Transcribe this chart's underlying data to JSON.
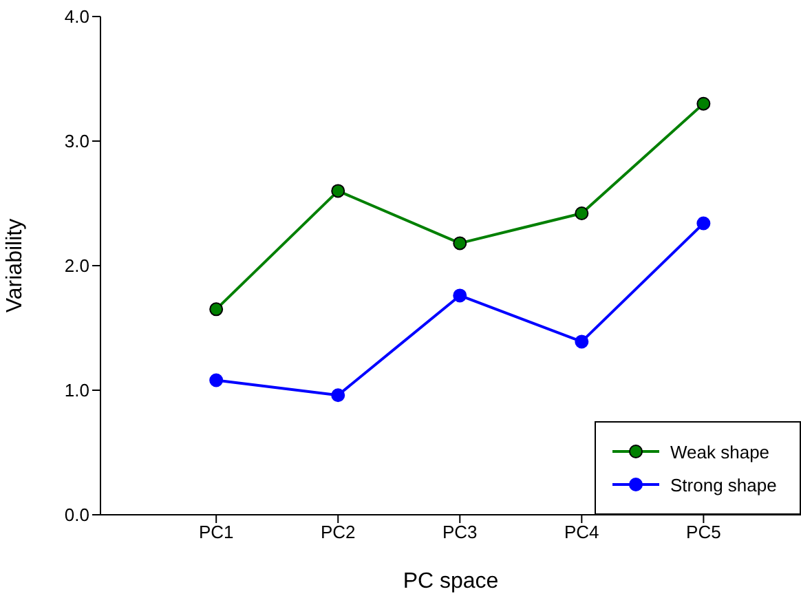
{
  "chart_data": {
    "type": "line",
    "xlabel": "PC space",
    "ylabel": "Variability",
    "categories": [
      "PC1",
      "PC2",
      "PC3",
      "PC4",
      "PC5"
    ],
    "series": [
      {
        "name": "Weak shape",
        "color": "#008000",
        "values": [
          1.65,
          2.6,
          2.18,
          2.42,
          3.3
        ]
      },
      {
        "name": "Strong shape",
        "color": "#0000ff",
        "values": [
          1.08,
          0.96,
          1.76,
          1.39,
          2.34
        ]
      }
    ],
    "ylim": [
      0,
      4
    ],
    "yticks": [
      {
        "value": 0,
        "label": "0.0"
      },
      {
        "value": 1,
        "label": "1.0"
      },
      {
        "value": 2,
        "label": "2.0"
      },
      {
        "value": 3,
        "label": "3.0"
      },
      {
        "value": 4,
        "label": "4.0"
      }
    ],
    "grid": false,
    "legend": "bottom right",
    "marker": "circle",
    "line_style": "solid"
  }
}
